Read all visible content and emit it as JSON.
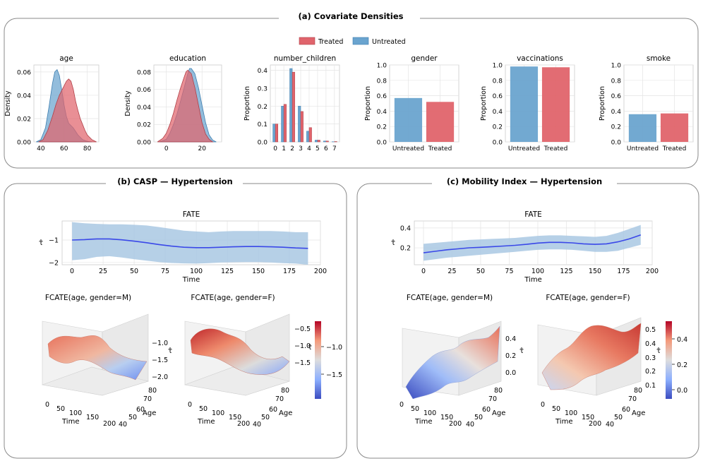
{
  "panels": {
    "a_title": "(a) Covariate Densities",
    "b_title": "(b) CASP — Hypertension",
    "c_title": "(c) Mobility Index — Hypertension"
  },
  "legend": {
    "treated": "Treated",
    "untreated": "Untreated"
  },
  "colors": {
    "treated": "#e0646c",
    "untreated": "#6aa4cf",
    "overlap": "#6e6a9a",
    "line": "#3a48e8",
    "band": "#a9c8e3"
  },
  "chart_data": [
    {
      "id": "age",
      "type": "area",
      "title": "age",
      "ylabel": "Density",
      "xticks": [
        "40",
        "60",
        "80"
      ],
      "yticks": [
        "0.00",
        "0.02",
        "0.04",
        "0.06"
      ],
      "xlim": [
        34,
        90
      ],
      "ylim": [
        0,
        0.066
      ],
      "series": [
        {
          "name": "Untreated",
          "x": [
            36,
            40,
            44,
            47,
            50,
            52,
            54,
            56,
            58,
            60,
            62,
            64,
            66,
            68,
            70,
            72,
            74,
            76,
            80,
            84
          ],
          "values": [
            0,
            0.002,
            0.012,
            0.03,
            0.05,
            0.06,
            0.062,
            0.057,
            0.045,
            0.032,
            0.022,
            0.016,
            0.014,
            0.012,
            0.009,
            0.006,
            0.004,
            0.002,
            0.0005,
            0
          ]
        },
        {
          "name": "Treated",
          "x": [
            38,
            42,
            46,
            50,
            53,
            56,
            58,
            60,
            62,
            64,
            66,
            68,
            70,
            72,
            74,
            76,
            78,
            80,
            84,
            88
          ],
          "values": [
            0,
            0.002,
            0.01,
            0.022,
            0.032,
            0.04,
            0.044,
            0.048,
            0.052,
            0.054,
            0.052,
            0.045,
            0.035,
            0.027,
            0.02,
            0.015,
            0.01,
            0.006,
            0.002,
            0
          ]
        }
      ]
    },
    {
      "id": "education",
      "type": "area",
      "title": "education",
      "ylabel": "Density",
      "xticks": [
        "0",
        "20"
      ],
      "yticks": [
        "0.00",
        "0.02",
        "0.04",
        "0.06",
        "0.08"
      ],
      "xlim": [
        -7,
        31
      ],
      "ylim": [
        0,
        0.088
      ],
      "series": [
        {
          "name": "Untreated",
          "x": [
            -4,
            0,
            2,
            4,
            6,
            8,
            10,
            12,
            13,
            14,
            16,
            18,
            20,
            22,
            24,
            26,
            28
          ],
          "values": [
            0,
            0.003,
            0.01,
            0.02,
            0.032,
            0.047,
            0.062,
            0.078,
            0.084,
            0.084,
            0.078,
            0.062,
            0.042,
            0.022,
            0.008,
            0.002,
            0
          ]
        },
        {
          "name": "Treated",
          "x": [
            -5,
            -2,
            0,
            2,
            4,
            6,
            8,
            10,
            11,
            12,
            14,
            16,
            18,
            20,
            22,
            24,
            26
          ],
          "values": [
            0,
            0.004,
            0.01,
            0.02,
            0.033,
            0.048,
            0.062,
            0.074,
            0.08,
            0.082,
            0.078,
            0.062,
            0.042,
            0.022,
            0.009,
            0.003,
            0
          ]
        }
      ]
    },
    {
      "id": "number_children",
      "type": "bar",
      "title": "number_children",
      "ylabel": "Proportion",
      "categories": [
        "0",
        "1",
        "2",
        "3",
        "4",
        "5",
        "6",
        "7"
      ],
      "yticks": [
        "0.0",
        "0.1",
        "0.2",
        "0.3",
        "0.4"
      ],
      "ylim": [
        0,
        0.43
      ],
      "series": [
        {
          "name": "Untreated",
          "values": [
            0.1,
            0.2,
            0.41,
            0.2,
            0.06,
            0.01,
            0.005,
            0.001
          ]
        },
        {
          "name": "Treated",
          "values": [
            0.1,
            0.21,
            0.39,
            0.17,
            0.08,
            0.01,
            0.005,
            0.002
          ]
        }
      ]
    },
    {
      "id": "gender",
      "type": "bar",
      "title": "gender",
      "ylabel": "Proportion",
      "categories": [
        "Untreated",
        "Treated"
      ],
      "values": [
        0.57,
        0.52
      ],
      "yticks": [
        "0.0",
        "0.2",
        "0.4",
        "0.6",
        "0.8",
        "1.0"
      ],
      "ylim": [
        0,
        1.0
      ]
    },
    {
      "id": "vaccinations",
      "type": "bar",
      "title": "vaccinations",
      "ylabel": "Proportion",
      "categories": [
        "Untreated",
        "Treated"
      ],
      "values": [
        0.98,
        0.97
      ],
      "yticks": [
        "0.0",
        "0.2",
        "0.4",
        "0.6",
        "0.8",
        "1.0"
      ],
      "ylim": [
        0,
        1.0
      ]
    },
    {
      "id": "smoke",
      "type": "bar",
      "title": "smoke",
      "ylabel": "Proportion",
      "categories": [
        "Untreated",
        "Treated"
      ],
      "values": [
        0.36,
        0.37
      ],
      "yticks": [
        "0.0",
        "0.2",
        "0.4",
        "0.6",
        "0.8",
        "1.0"
      ],
      "ylim": [
        0,
        1.0
      ]
    },
    {
      "id": "fate_casp",
      "type": "line",
      "title": "FATE",
      "xlabel": "Time",
      "ylabel": "τ̂",
      "xticks": [
        "0",
        "25",
        "50",
        "75",
        "100",
        "125",
        "150",
        "175",
        "200"
      ],
      "yticks": [
        "−1",
        "−2"
      ],
      "xlim": [
        -8,
        200
      ],
      "ylim": [
        -2.1,
        -0.15
      ],
      "x": [
        0,
        10,
        20,
        30,
        40,
        50,
        60,
        70,
        80,
        90,
        100,
        110,
        120,
        130,
        140,
        150,
        160,
        170,
        180,
        190
      ],
      "mean": [
        -1.0,
        -0.98,
        -0.95,
        -0.95,
        -0.99,
        -1.05,
        -1.12,
        -1.2,
        -1.27,
        -1.32,
        -1.34,
        -1.34,
        -1.32,
        -1.3,
        -1.29,
        -1.29,
        -1.3,
        -1.32,
        -1.35,
        -1.37
      ],
      "lower": [
        -1.9,
        -1.85,
        -1.75,
        -1.72,
        -1.78,
        -1.85,
        -1.92,
        -1.98,
        -2.02,
        -2.04,
        -2.05,
        -2.03,
        -2.0,
        -1.99,
        -1.98,
        -1.98,
        -2.0,
        -2.03,
        -2.05,
        -2.1
      ],
      "upper": [
        -0.2,
        -0.25,
        -0.28,
        -0.3,
        -0.3,
        -0.32,
        -0.35,
        -0.42,
        -0.5,
        -0.58,
        -0.62,
        -0.65,
        -0.62,
        -0.6,
        -0.6,
        -0.6,
        -0.6,
        -0.62,
        -0.65,
        -0.65
      ]
    },
    {
      "id": "fate_mobility",
      "type": "line",
      "title": "FATE",
      "xlabel": "Time",
      "ylabel": "τ̂",
      "xticks": [
        "0",
        "25",
        "50",
        "75",
        "100",
        "125",
        "150",
        "175",
        "200"
      ],
      "yticks": [
        "0.2",
        "0.4"
      ],
      "xlim": [
        -8,
        200
      ],
      "ylim": [
        0.03,
        0.47
      ],
      "x": [
        0,
        10,
        20,
        30,
        40,
        50,
        60,
        70,
        80,
        90,
        100,
        110,
        120,
        130,
        140,
        150,
        160,
        170,
        180,
        190
      ],
      "mean": [
        0.15,
        0.165,
        0.18,
        0.19,
        0.2,
        0.205,
        0.212,
        0.218,
        0.225,
        0.235,
        0.248,
        0.255,
        0.255,
        0.25,
        0.24,
        0.235,
        0.24,
        0.26,
        0.29,
        0.33
      ],
      "lower": [
        0.07,
        0.085,
        0.1,
        0.11,
        0.12,
        0.13,
        0.14,
        0.15,
        0.16,
        0.17,
        0.18,
        0.185,
        0.185,
        0.18,
        0.17,
        0.16,
        0.16,
        0.17,
        0.2,
        0.23
      ],
      "upper": [
        0.24,
        0.25,
        0.26,
        0.27,
        0.28,
        0.285,
        0.29,
        0.295,
        0.3,
        0.31,
        0.32,
        0.325,
        0.325,
        0.32,
        0.315,
        0.31,
        0.32,
        0.35,
        0.39,
        0.43
      ]
    },
    {
      "id": "surface_casp_m",
      "type": "surface",
      "title": "FCATE(age, gender=M)",
      "xlabel": "Time",
      "ylabel": "Age",
      "zlabel": "τ̂",
      "xticks": [
        "0",
        "50",
        "100",
        "150",
        "200"
      ],
      "yticks": [
        "40",
        "50",
        "60",
        "70",
        "80"
      ],
      "zticks": [
        "−1.0",
        "−1.5",
        "−2.0"
      ]
    },
    {
      "id": "surface_casp_f",
      "type": "surface",
      "title": "FCATE(age, gender=F)",
      "xlabel": "Time",
      "ylabel": "Age",
      "zlabel": "τ̂",
      "xticks": [
        "0",
        "50",
        "100",
        "150",
        "200"
      ],
      "yticks": [
        "40",
        "50",
        "60",
        "70",
        "80"
      ],
      "zticks": [
        "−0.5",
        "−1.0",
        "−1.5"
      ]
    },
    {
      "id": "colorbar_casp",
      "type": "heatmap",
      "ticks": [
        "−1.0",
        "−1.5"
      ],
      "range": [
        -1.9,
        -0.5
      ]
    },
    {
      "id": "surface_mob_m",
      "type": "surface",
      "title": "FCATE(age, gender=M)",
      "xlabel": "Time",
      "ylabel": "Age",
      "zlabel": "τ̂",
      "xticks": [
        "0",
        "50",
        "100",
        "150",
        "200"
      ],
      "yticks": [
        "40",
        "50",
        "60",
        "70",
        "80"
      ],
      "zticks": [
        "0.4",
        "0.2",
        "0.0"
      ]
    },
    {
      "id": "surface_mob_f",
      "type": "surface",
      "title": "FCATE(age, gender=F)",
      "xlabel": "Time",
      "ylabel": "Age",
      "zlabel": "τ̂",
      "xticks": [
        "0",
        "50",
        "100",
        "150",
        "200"
      ],
      "yticks": [
        "40",
        "50",
        "60",
        "70",
        "80"
      ],
      "zticks": [
        "0.5",
        "0.4",
        "0.3",
        "0.2",
        "0.1"
      ]
    },
    {
      "id": "colorbar_mob",
      "type": "heatmap",
      "ticks": [
        "0.4",
        "0.2",
        "0.0"
      ],
      "range": [
        -0.05,
        0.5
      ]
    }
  ]
}
